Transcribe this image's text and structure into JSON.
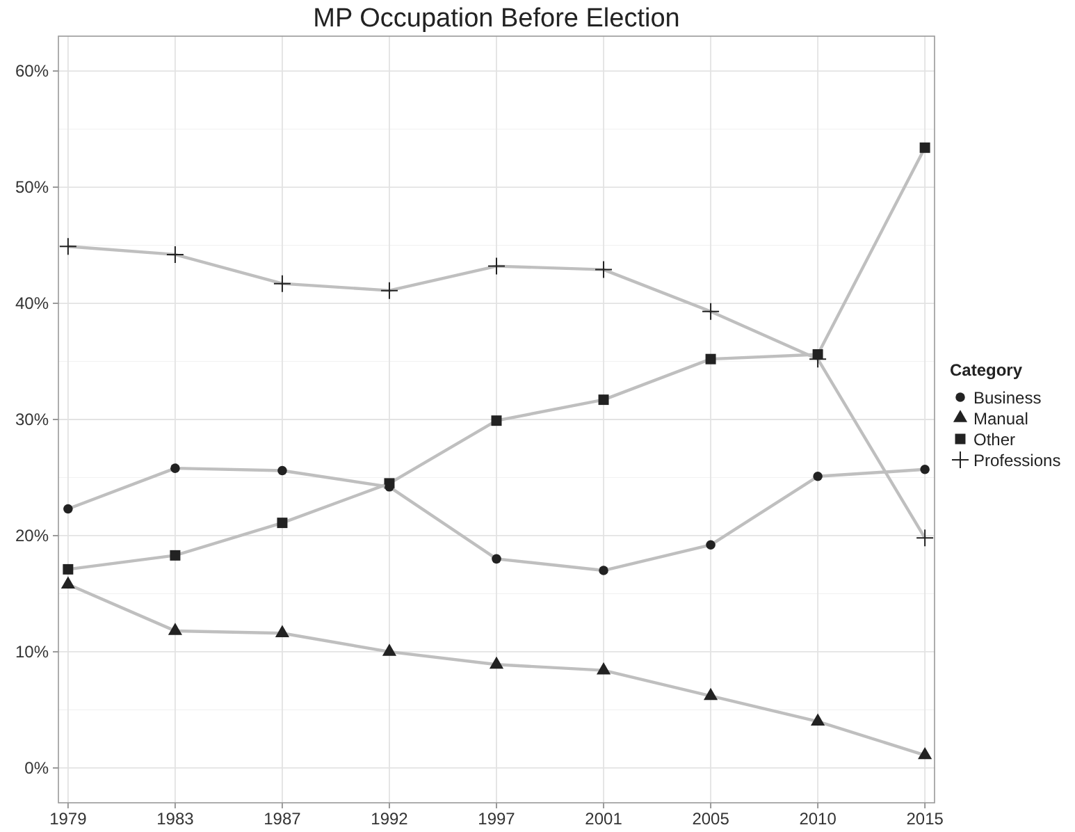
{
  "chart_data": {
    "type": "line",
    "title": "MP Occupation Before Election",
    "legend_title": "Category",
    "categories": [
      "1979",
      "1983",
      "1987",
      "1992",
      "1997",
      "2001",
      "2005",
      "2010",
      "2015"
    ],
    "series": [
      {
        "name": "Business",
        "color": "#bfbfbf",
        "marker": "circle",
        "values": [
          22.3,
          25.8,
          25.6,
          24.2,
          18.0,
          17.0,
          19.2,
          25.1,
          25.7
        ]
      },
      {
        "name": "Manual",
        "color": "#bfbfbf",
        "marker": "triangle",
        "values": [
          15.8,
          11.8,
          11.6,
          10.0,
          8.9,
          8.4,
          6.2,
          4.0,
          1.1
        ]
      },
      {
        "name": "Other",
        "color": "#bfbfbf",
        "marker": "square",
        "values": [
          17.1,
          18.3,
          21.1,
          24.5,
          29.9,
          31.7,
          35.2,
          35.6,
          53.4
        ]
      },
      {
        "name": "Professions",
        "color": "#bfbfbf",
        "marker": "cross",
        "values": [
          44.9,
          44.2,
          41.7,
          41.1,
          43.2,
          42.9,
          39.3,
          35.2,
          19.8
        ]
      }
    ],
    "ylim": [
      -3,
      63
    ],
    "yticks": [
      {
        "value": 0,
        "label": "0%"
      },
      {
        "value": 10,
        "label": "10%"
      },
      {
        "value": 20,
        "label": "20%"
      },
      {
        "value": 30,
        "label": "30%"
      },
      {
        "value": 40,
        "label": "40%"
      },
      {
        "value": 50,
        "label": "50%"
      },
      {
        "value": 60,
        "label": "60%"
      }
    ],
    "grid": true,
    "legend": "right",
    "line_style": "solid"
  }
}
